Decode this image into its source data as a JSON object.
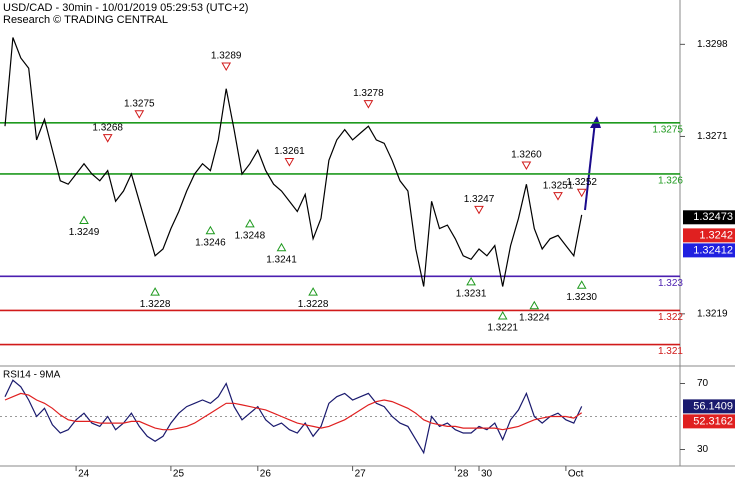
{
  "header": {
    "title": "USD/CAD - 30min - 10/01/2019 05:29:53 (UTC+2)",
    "subtitle": "Research © TRADING CENTRAL"
  },
  "chart_data": [
    {
      "type": "line",
      "categories": [
        null,
        null,
        null,
        null,
        null,
        null,
        null,
        null,
        null,
        "24",
        null,
        null,
        null,
        null,
        null,
        null,
        null,
        null,
        null,
        null,
        null,
        "25",
        null,
        null,
        null,
        null,
        null,
        null,
        null,
        null,
        null,
        null,
        "26",
        null,
        null,
        null,
        null,
        null,
        null,
        null,
        null,
        null,
        null,
        null,
        "27",
        null,
        null,
        null,
        null,
        null,
        null,
        null,
        null,
        null,
        null,
        null,
        null,
        "28",
        null,
        null,
        "30",
        null,
        null,
        null,
        null,
        null,
        null,
        null,
        null,
        null,
        null,
        "Oct",
        null,
        null
      ],
      "series": [
        {
          "color": "#000000",
          "values": [
            1.3274,
            1.33,
            1.3294,
            1.3291,
            1.327,
            1.3276,
            1.3267,
            1.3258,
            1.3257,
            1.326,
            1.3263,
            1.326,
            1.3258,
            1.3261,
            1.3252,
            1.3255,
            1.326,
            1.3252,
            1.3244,
            1.3236,
            1.3238,
            1.3244,
            1.3249,
            1.3255,
            1.326,
            1.3263,
            1.3261,
            1.327,
            1.3285,
            1.3273,
            1.326,
            1.3263,
            1.3267,
            1.3261,
            1.3257,
            1.3255,
            1.3252,
            1.3249,
            1.3254,
            1.3241,
            1.3247,
            1.3264,
            1.327,
            1.3273,
            1.327,
            1.3272,
            1.3274,
            1.327,
            1.3269,
            1.3264,
            1.3258,
            1.3255,
            1.3238,
            1.3227,
            1.3252,
            1.3244,
            1.3245,
            1.3241,
            1.3236,
            1.3235,
            1.3238,
            1.3236,
            1.3239,
            1.3227,
            1.3239,
            1.3247,
            1.3257,
            1.3244,
            1.3238,
            1.3241,
            1.3242,
            1.3239,
            1.3236,
            1.3248
          ]
        }
      ],
      "ylim": [
        1.3204,
        1.3311
      ],
      "yticks": [
        1.3298,
        1.3271,
        1.3219
      ],
      "levels": [
        {
          "value": 1.3275,
          "color": "#1f9a1f"
        },
        {
          "value": 1.326,
          "color": "#1f9a1f"
        },
        {
          "value": 1.323,
          "color": "#4b1fb0"
        },
        {
          "value": 1.322,
          "color": "#d11a1a"
        },
        {
          "value": 1.321,
          "color": "#d11a1a"
        }
      ],
      "last_values": [
        {
          "value": 1.32473,
          "color": "#000000"
        },
        {
          "value": 1.3242,
          "color": "#e02020"
        },
        {
          "value": 1.32412,
          "color": "#2020e0"
        }
      ],
      "annotations": [
        {
          "index": 13,
          "value": 1.3268,
          "kind": "high"
        },
        {
          "index": 17,
          "value": 1.3275,
          "kind": "high"
        },
        {
          "index": 28,
          "value": 1.3289,
          "kind": "high"
        },
        {
          "index": 36,
          "value": 1.3261,
          "kind": "high"
        },
        {
          "index": 46,
          "value": 1.3278,
          "kind": "high"
        },
        {
          "index": 60,
          "value": 1.3247,
          "kind": "high"
        },
        {
          "index": 66,
          "value": 1.326,
          "label": "1.3260",
          "kind": "high"
        },
        {
          "index": 70,
          "value": 1.3251,
          "kind": "high"
        },
        {
          "index": 73,
          "value": 1.3252,
          "kind": "high"
        },
        {
          "index": 10,
          "value": 1.3249,
          "kind": "low"
        },
        {
          "index": 19,
          "value": 1.3228,
          "kind": "low"
        },
        {
          "index": 26,
          "value": 1.3246,
          "kind": "low"
        },
        {
          "index": 31,
          "value": 1.3248,
          "kind": "low"
        },
        {
          "index": 35,
          "value": 1.3241,
          "kind": "low"
        },
        {
          "index": 39,
          "value": 1.3228,
          "kind": "low"
        },
        {
          "index": 59,
          "value": 1.3231,
          "kind": "low"
        },
        {
          "index": 63,
          "value": 1.3221,
          "kind": "low"
        },
        {
          "index": 67,
          "value": 1.3224,
          "kind": "low"
        },
        {
          "index": 73,
          "value": 1.323,
          "label": "1.3230",
          "kind": "low"
        }
      ]
    },
    {
      "type": "line",
      "title": "RSI14 - 9MA",
      "series": [
        {
          "color": "#1a1a6e",
          "values": [
            62,
            72,
            68,
            60,
            50,
            55,
            45,
            40,
            42,
            48,
            52,
            46,
            44,
            50,
            42,
            46,
            52,
            44,
            38,
            35,
            38,
            46,
            52,
            56,
            58,
            60,
            58,
            62,
            70,
            56,
            48,
            52,
            56,
            48,
            44,
            46,
            42,
            40,
            46,
            38,
            44,
            58,
            62,
            64,
            60,
            62,
            64,
            58,
            56,
            50,
            46,
            44,
            36,
            28,
            50,
            44,
            46,
            42,
            40,
            40,
            44,
            42,
            46,
            36,
            48,
            54,
            64,
            50,
            46,
            50,
            52,
            48,
            46,
            56.1409
          ]
        },
        {
          "color": "#e02020",
          "values": [
            60,
            62,
            64,
            63,
            60,
            58,
            55,
            51,
            48,
            47,
            47,
            47,
            46,
            46,
            46,
            46,
            47,
            47,
            45,
            43,
            42,
            42,
            43,
            44,
            46,
            49,
            52,
            55,
            58,
            58,
            57,
            56,
            55,
            54,
            52,
            50,
            48,
            46,
            45,
            44,
            43,
            44,
            46,
            48,
            51,
            54,
            57,
            59,
            60,
            59,
            57,
            55,
            52,
            48,
            46,
            45,
            44,
            44,
            43,
            43,
            43,
            43,
            43,
            42,
            43,
            44,
            46,
            48,
            49,
            50,
            50,
            50,
            49,
            52.3162
          ]
        }
      ],
      "ylim": [
        20,
        80
      ],
      "yticks": [
        70,
        30
      ],
      "midline": 50,
      "last_values": [
        {
          "value": 56.1409,
          "color": "#1a1a6e"
        },
        {
          "value": 52.3162,
          "color": "#e02020"
        }
      ]
    }
  ]
}
